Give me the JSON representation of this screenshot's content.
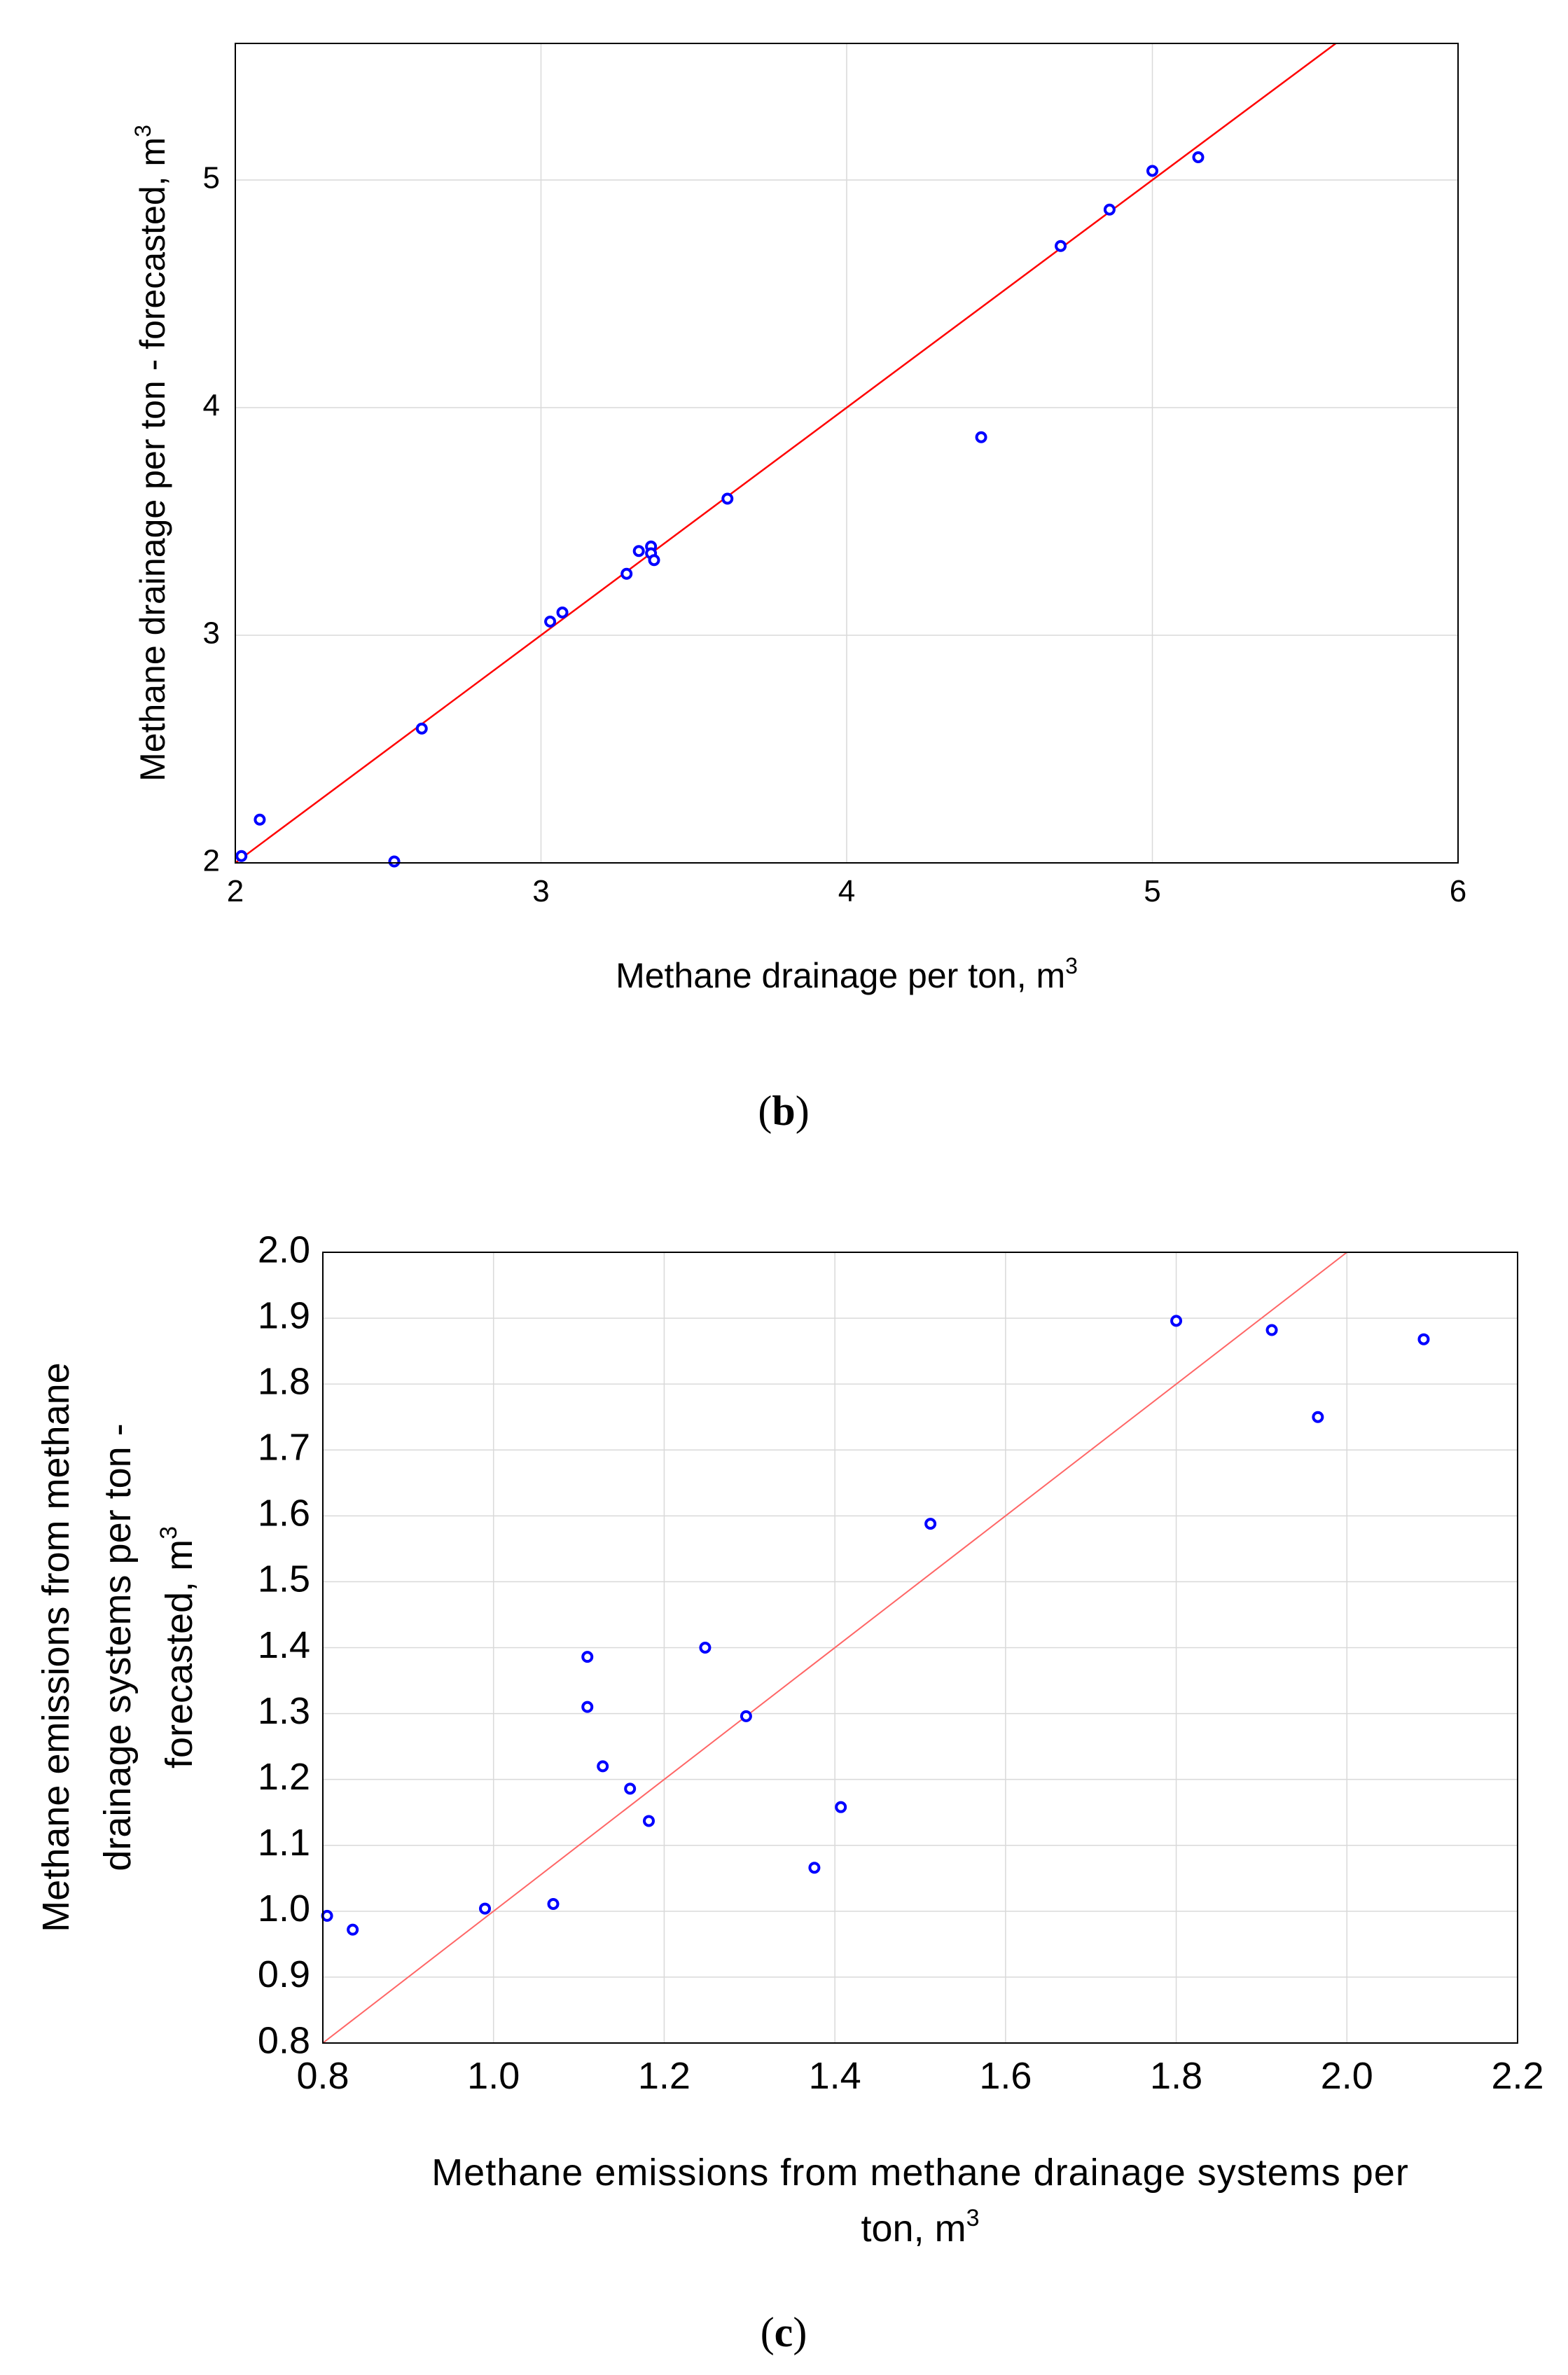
{
  "chart_data": [
    {
      "panel": "b",
      "type": "scatter",
      "title": "",
      "xlabel": "Methane drainage per ton,  m",
      "xlabel_sup": "3",
      "ylabel": "Methane drainage per ton - forecasted,  m",
      "ylabel_sup": "3",
      "xlim": [
        2,
        6
      ],
      "ylim": [
        2,
        5.6
      ],
      "x_ticks": [
        "2",
        "3",
        "4",
        "5",
        "6"
      ],
      "y_ticks": [
        "2",
        "3",
        "4",
        "5"
      ],
      "grid": true,
      "panel_label": "b",
      "reference_line": {
        "type": "identity",
        "color": "#ff0000"
      },
      "point_color": "#0000ff",
      "points": [
        {
          "x": 2.02,
          "y": 2.03
        },
        {
          "x": 2.08,
          "y": 2.19
        },
        {
          "x": 2.52,
          "y": 1.97
        },
        {
          "x": 2.61,
          "y": 2.59
        },
        {
          "x": 3.03,
          "y": 3.06
        },
        {
          "x": 3.07,
          "y": 3.1
        },
        {
          "x": 3.28,
          "y": 3.27
        },
        {
          "x": 3.32,
          "y": 3.37
        },
        {
          "x": 3.36,
          "y": 3.39
        },
        {
          "x": 3.36,
          "y": 3.36
        },
        {
          "x": 3.37,
          "y": 3.33
        },
        {
          "x": 3.61,
          "y": 3.6
        },
        {
          "x": 4.44,
          "y": 3.87
        },
        {
          "x": 4.7,
          "y": 4.71
        },
        {
          "x": 4.86,
          "y": 4.87
        },
        {
          "x": 5.0,
          "y": 5.04
        },
        {
          "x": 5.15,
          "y": 5.1
        }
      ]
    },
    {
      "panel": "c",
      "type": "scatter",
      "title": "",
      "xlabel_lines": [
        "Methane emissions from methane drainage systems per",
        "ton,  m"
      ],
      "xlabel_sup": "3",
      "ylabel_lines": [
        "Methane emissions from methane",
        "drainage systems per ton -",
        "forecasted,  m"
      ],
      "ylabel_sup": "3",
      "xlim": [
        0.8,
        2.2
      ],
      "ylim": [
        0.8,
        2.0
      ],
      "x_ticks": [
        "0.8",
        "1.0",
        "1.2",
        "1.4",
        "1.6",
        "1.8",
        "2.0",
        "2.2"
      ],
      "y_ticks": [
        "0.8",
        "0.9",
        "1.0",
        "1.1",
        "1.2",
        "1.3",
        "1.4",
        "1.5",
        "1.6",
        "1.7",
        "1.8",
        "1.9",
        "2.0"
      ],
      "grid": true,
      "panel_label": "c",
      "reference_line": {
        "type": "identity",
        "color": "#ff6666"
      },
      "point_color": "#0000ff",
      "points": [
        {
          "x": 0.805,
          "y": 0.993
        },
        {
          "x": 0.835,
          "y": 0.972
        },
        {
          "x": 0.99,
          "y": 1.004
        },
        {
          "x": 1.07,
          "y": 1.011
        },
        {
          "x": 1.11,
          "y": 1.386
        },
        {
          "x": 1.11,
          "y": 1.31
        },
        {
          "x": 1.128,
          "y": 1.22
        },
        {
          "x": 1.16,
          "y": 1.186
        },
        {
          "x": 1.182,
          "y": 1.137
        },
        {
          "x": 1.248,
          "y": 1.4
        },
        {
          "x": 1.296,
          "y": 1.296
        },
        {
          "x": 1.376,
          "y": 1.066
        },
        {
          "x": 1.407,
          "y": 1.158
        },
        {
          "x": 1.512,
          "y": 1.588
        },
        {
          "x": 1.8,
          "y": 1.896
        },
        {
          "x": 1.912,
          "y": 1.882
        },
        {
          "x": 1.966,
          "y": 1.75
        },
        {
          "x": 2.09,
          "y": 1.868
        }
      ]
    }
  ]
}
